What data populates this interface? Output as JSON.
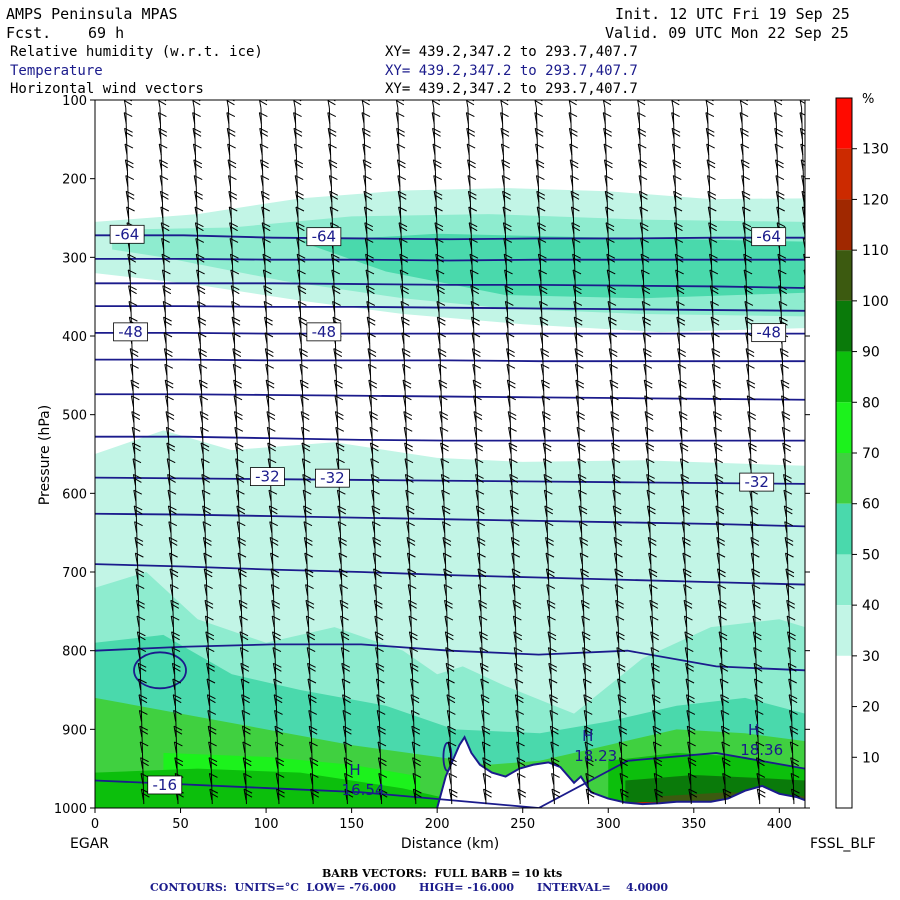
{
  "header": {
    "model": "AMPS Peninsula MPAS",
    "init": "Init. 12 UTC Fri 19 Sep 25",
    "fcst_label": "Fcst.",
    "fcst_value": "69 h",
    "valid": "Valid. 09 UTC Mon 22 Sep 25",
    "fields": [
      {
        "name": "Relative humidity (w.r.t. ice)",
        "xy": "XY= 439.2,347.2 to 293.7,407.7"
      },
      {
        "name": "Temperature",
        "xy": "XY= 439.2,347.2 to 293.7,407.7"
      },
      {
        "name": "Horizontal wind vectors",
        "xy": "XY= 439.2,347.2 to 293.7,407.7"
      }
    ]
  },
  "labels": {
    "left_station": "EGAR",
    "right_station": "FSSL_BLF",
    "barb_note": "BARB VECTORS:  FULL BARB = 10 kts",
    "contour_note": "CONTOURS:  UNITS=°C  LOW= -76.000      HIGH= -16.000      INTERVAL=    4.0000"
  },
  "colors": {
    "rh_30_40": "#c2f5e6",
    "rh_40_50": "#8eeccf",
    "rh_50_60": "#4ad9ac",
    "rh_60_70": "#40d040",
    "rh_70_80": "#1cf21c",
    "rh_80_90": "#0cbf0c",
    "rh_90_100": "#0a7a0a",
    "rh_100_110": "#3c5a10",
    "rh_110_120": "#a02800",
    "rh_120_130": "#cc2a00",
    "rh_130_plus": "#ff0a00",
    "isotherm": "#1b1b8c",
    "terrain": "#1b1b8c"
  },
  "chart_data": {
    "type": "heatmap",
    "xlabel": "Distance (km)",
    "ylabel": "Pressure (hPa)",
    "xlim": [
      0,
      415
    ],
    "ylim": [
      1000,
      100
    ],
    "x_ticks": [
      0,
      50,
      100,
      150,
      200,
      250,
      300,
      350,
      400
    ],
    "y_ticks": [
      100,
      200,
      300,
      400,
      500,
      600,
      700,
      800,
      900,
      1000
    ],
    "colorbar": {
      "unit": "%",
      "ticks": [
        10,
        20,
        30,
        40,
        50,
        60,
        70,
        80,
        90,
        100,
        110,
        120,
        130
      ],
      "colors": [
        "#ffffff",
        "#ffffff",
        "#ffffff",
        "#c2f5e6",
        "#8eeccf",
        "#4ad9ac",
        "#40d040",
        "#1cf21c",
        "#0cbf0c",
        "#0a7a0a",
        "#3c5a10",
        "#a02800",
        "#cc2a00",
        "#ff0a00"
      ]
    },
    "isotherms": [
      {
        "level": -64,
        "p": [
          272,
          272,
          275,
          276,
          277,
          276,
          276,
          275,
          275
        ]
      },
      {
        "level": -60,
        "p": [
          302,
          302,
          303,
          303,
          304,
          303,
          303,
          303,
          303
        ]
      },
      {
        "level": -56,
        "p": [
          333,
          333,
          333,
          334,
          335,
          335,
          336,
          337,
          339
        ]
      },
      {
        "level": -52,
        "p": [
          362,
          362,
          363,
          363,
          364,
          365,
          366,
          367,
          368
        ]
      },
      {
        "level": -48,
        "p": [
          396,
          396,
          397,
          397,
          397,
          397,
          397,
          397,
          397
        ]
      },
      {
        "level": -44,
        "p": [
          430,
          430,
          431,
          431,
          431,
          432,
          432,
          432,
          432
        ]
      },
      {
        "level": -40,
        "p": [
          474,
          474,
          475,
          476,
          477,
          478,
          479,
          480,
          481
        ]
      },
      {
        "level": -36,
        "p": [
          528,
          528,
          530,
          532,
          533,
          533,
          533,
          533,
          533
        ]
      },
      {
        "level": -32,
        "p": [
          580,
          581,
          582,
          583,
          584,
          585,
          586,
          587,
          588
        ]
      },
      {
        "level": -28,
        "p": [
          626,
          627,
          629,
          631,
          633,
          635,
          637,
          639,
          642
        ]
      },
      {
        "level": -24,
        "p": [
          690,
          693,
          697,
          700,
          704,
          707,
          710,
          713,
          716
        ]
      },
      {
        "level": -20,
        "p": [
          800,
          795,
          792,
          792,
          800,
          805,
          800,
          820,
          825
        ]
      },
      {
        "level": -16,
        "p": [
          965,
          970,
          975,
          980,
          990,
          1000,
          940,
          930,
          950
        ]
      }
    ],
    "contour_labels": [
      {
        "text": "-64",
        "x": 10,
        "p": 272
      },
      {
        "text": "-64",
        "x": 125,
        "p": 275
      },
      {
        "text": "-64",
        "x": 385,
        "p": 275
      },
      {
        "text": "-48",
        "x": 12,
        "p": 396
      },
      {
        "text": "-48",
        "x": 125,
        "p": 396
      },
      {
        "text": "-48",
        "x": 385,
        "p": 397
      },
      {
        "text": "-32",
        "x": 92,
        "p": 580
      },
      {
        "text": "-32",
        "x": 130,
        "p": 582
      },
      {
        "text": "-32",
        "x": 378,
        "p": 587
      },
      {
        "text": "-16",
        "x": 32,
        "p": 972
      }
    ],
    "extrema": [
      {
        "type": "H",
        "x": 152,
        "p": 958,
        "value": "16.54"
      },
      {
        "type": "H",
        "x": 288,
        "p": 915,
        "value": "18.23"
      },
      {
        "type": "H",
        "x": 385,
        "p": 907,
        "value": "18.36"
      }
    ],
    "terrain_x": [
      200,
      205,
      210,
      213,
      216,
      220,
      225,
      232,
      240,
      248,
      256,
      265,
      272,
      280,
      284,
      290,
      300,
      310,
      320,
      330,
      340,
      350,
      360,
      370,
      380,
      390,
      400,
      410,
      415
    ],
    "terrain_p": [
      1000,
      960,
      935,
      920,
      910,
      930,
      945,
      955,
      960,
      950,
      945,
      942,
      948,
      968,
      960,
      980,
      988,
      993,
      995,
      994,
      992,
      992,
      992,
      988,
      978,
      972,
      982,
      986,
      990
    ],
    "barb_columns_x": [
      18,
      38,
      58,
      78,
      97,
      117,
      137,
      157,
      177,
      198,
      218,
      238,
      258,
      278,
      298,
      318,
      338,
      358,
      378,
      398,
      413
    ]
  }
}
